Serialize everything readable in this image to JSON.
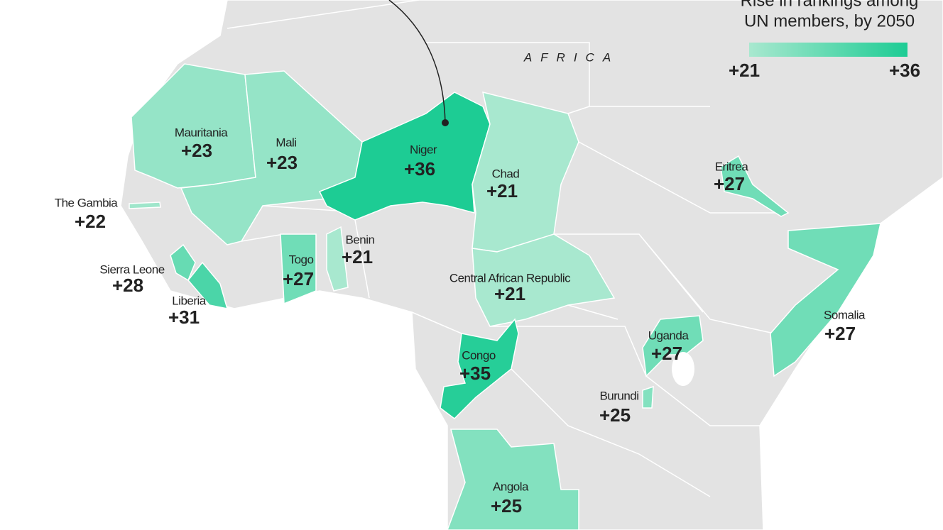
{
  "legend": {
    "title_lines": [
      "Rise in rankings among",
      "UN members, by 2050"
    ],
    "min": {
      "value": 21,
      "label": "+21"
    },
    "max": {
      "value": 36,
      "label": "+36"
    }
  },
  "region_label": "AFRICA",
  "countries": [
    {
      "name": "Mauritania",
      "value": 23,
      "label": "+23"
    },
    {
      "name": "Mali",
      "value": 23,
      "label": "+23"
    },
    {
      "name": "Niger",
      "value": 36,
      "label": "+36"
    },
    {
      "name": "Chad",
      "value": 21,
      "label": "+21"
    },
    {
      "name": "The Gambia",
      "value": 22,
      "label": "+22"
    },
    {
      "name": "Benin",
      "value": 21,
      "label": "+21"
    },
    {
      "name": "Togo",
      "value": 27,
      "label": "+27"
    },
    {
      "name": "Sierra Leone",
      "value": 28,
      "label": "+28"
    },
    {
      "name": "Central African Republic",
      "value": 21,
      "label": "+21"
    },
    {
      "name": "Liberia",
      "value": 31,
      "label": "+31"
    },
    {
      "name": "Eritrea",
      "value": 27,
      "label": "+27"
    },
    {
      "name": "Somalia",
      "value": 27,
      "label": "+27"
    },
    {
      "name": "Uganda",
      "value": 27,
      "label": "+27"
    },
    {
      "name": "Congo",
      "value": 35,
      "label": "+35"
    },
    {
      "name": "Burundi",
      "value": 25,
      "label": "+25"
    },
    {
      "name": "Angola",
      "value": 25,
      "label": "+25"
    }
  ]
}
